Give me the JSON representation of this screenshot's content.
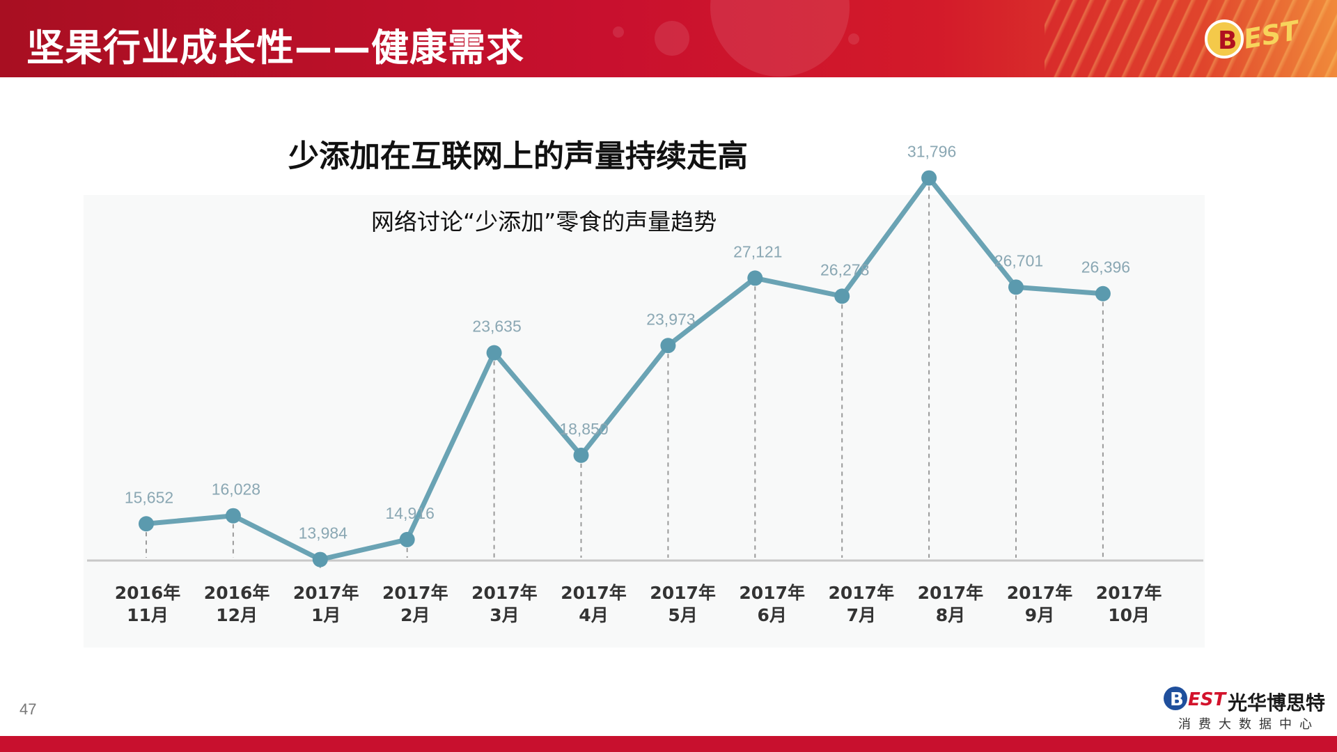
{
  "header": {
    "title": "坚果行业成长性——健康需求",
    "logo_text": "EST"
  },
  "slide": {
    "title": "少添加在互联网上的声量持续走高",
    "page_number": "47"
  },
  "footer": {
    "brand_logo_text": "EST",
    "brand_name": "光华博思特",
    "brand_sub": "消费大数据中心"
  },
  "colors": {
    "header_red": "#c8102e",
    "line": "#6aa3b4",
    "point": "#5b9aae",
    "label": "#8aa7b3",
    "axis": "#c8c8c8"
  },
  "chart_data": {
    "type": "line",
    "title": "网络讨论“少添加”零食的声量趋势",
    "xlabel": "",
    "ylabel": "",
    "ylim": [
      0,
      34000
    ],
    "grid": false,
    "categories": [
      [
        "2016年",
        "11月"
      ],
      [
        "2016年",
        "12月"
      ],
      [
        "2017年",
        "1月"
      ],
      [
        "2017年",
        "2月"
      ],
      [
        "2017年",
        "3月"
      ],
      [
        "2017年",
        "4月"
      ],
      [
        "2017年",
        "5月"
      ],
      [
        "2017年",
        "6月"
      ],
      [
        "2017年",
        "7月"
      ],
      [
        "2017年",
        "8月"
      ],
      [
        "2017年",
        "9月"
      ],
      [
        "2017年",
        "10月"
      ]
    ],
    "values": [
      15652,
      16028,
      13984,
      14916,
      23635,
      18850,
      23973,
      27121,
      26278,
      31796,
      26701,
      26396
    ],
    "value_labels": [
      "15,652",
      "16,028",
      "13,984",
      "14,916",
      "23,635",
      "18,850",
      "23,973",
      "27,121",
      "26,278",
      "31,796",
      "26,701",
      "26,396"
    ]
  }
}
